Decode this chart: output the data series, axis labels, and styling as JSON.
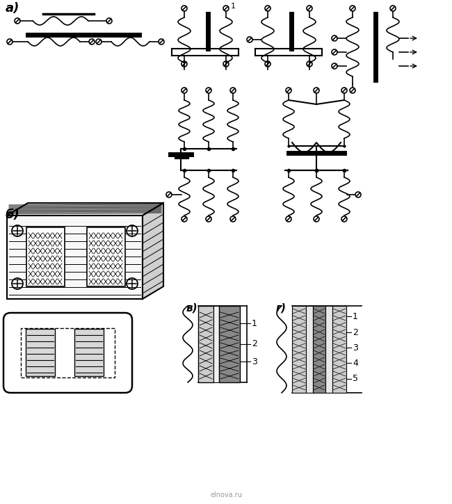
{
  "bg_color": "#ffffff",
  "lc": "#000000",
  "label_a": "а)",
  "label_b": "б)",
  "label_v": "в)",
  "label_g": "г)",
  "watermark": "elnova.ru"
}
